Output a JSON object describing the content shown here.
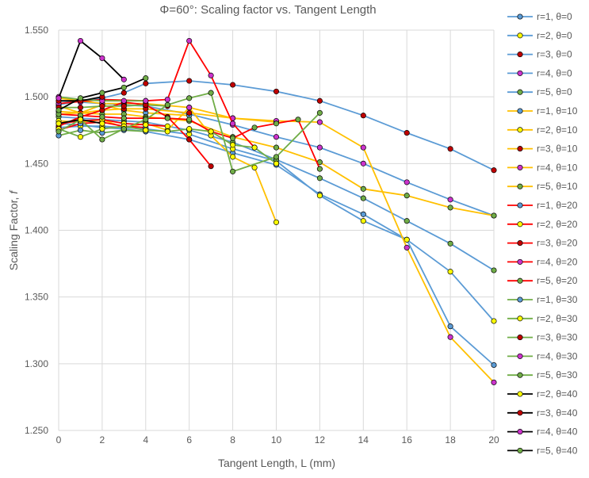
{
  "chart_data": {
    "type": "line",
    "title": "Φ=60°: Scaling factor vs. Tangent Length",
    "xlabel": "Tangent Length, L (mm)",
    "ylabel_main": "Scaling Factor, ",
    "ylabel_symbol": "f",
    "xlim": [
      0,
      20
    ],
    "ylim": [
      1.25,
      1.55
    ],
    "x_ticks": [
      0,
      2,
      4,
      6,
      8,
      10,
      12,
      14,
      16,
      18,
      20
    ],
    "y_ticks": [
      1.25,
      1.3,
      1.35,
      1.4,
      1.45,
      1.5,
      1.55
    ],
    "x_tick_labels": [
      "0",
      "2",
      "4",
      "6",
      "8",
      "10",
      "12",
      "14",
      "16",
      "18",
      "20"
    ],
    "y_tick_labels": [
      "1.250",
      "1.300",
      "1.350",
      "1.400",
      "1.450",
      "1.500",
      "1.550"
    ],
    "gridlines": "both",
    "legend_position": "right",
    "series": [
      {
        "name": "r=1, θ=0",
        "line": "#5b9bd5",
        "marker": "#5b9bd5",
        "x": [
          0,
          1,
          2,
          3,
          4,
          6,
          8,
          10,
          12,
          14,
          16,
          18,
          20
        ],
        "y": [
          1.48,
          1.479,
          1.477,
          1.476,
          1.474,
          1.468,
          1.458,
          1.449,
          1.427,
          1.412,
          1.393,
          1.328,
          1.299
        ]
      },
      {
        "name": "r=2, θ=0",
        "line": "#5b9bd5",
        "marker": "#ffff00",
        "x": [
          0,
          1,
          2,
          3,
          4,
          6,
          8,
          10,
          12,
          14,
          16,
          18,
          20
        ],
        "y": [
          1.477,
          1.478,
          1.478,
          1.477,
          1.476,
          1.472,
          1.461,
          1.452,
          1.426,
          1.407,
          1.393,
          1.369,
          1.332
        ]
      },
      {
        "name": "r=3, θ=0",
        "line": "#5b9bd5",
        "marker": "#c00000",
        "x": [
          0,
          1,
          2,
          3,
          4,
          6,
          8,
          10,
          12,
          14,
          16,
          18,
          20
        ],
        "y": [
          1.494,
          1.497,
          1.499,
          1.503,
          1.51,
          1.512,
          1.509,
          1.504,
          1.497,
          1.486,
          1.473,
          1.461,
          1.445
        ]
      },
      {
        "name": "r=4, θ=0",
        "line": "#5b9bd5",
        "marker": "#cc33cc",
        "x": [
          0,
          1,
          2,
          3,
          4,
          6,
          8,
          10,
          12,
          14,
          16,
          18,
          20
        ],
        "y": [
          1.497,
          1.496,
          1.495,
          1.494,
          1.493,
          1.487,
          1.479,
          1.47,
          1.462,
          1.45,
          1.436,
          1.423,
          1.411
        ]
      },
      {
        "name": "r=5, θ=0",
        "line": "#5b9bd5",
        "marker": "#70ad47",
        "x": [
          0,
          1,
          2,
          3,
          4,
          6,
          8,
          10,
          12,
          14,
          16,
          18,
          20
        ],
        "y": [
          1.485,
          1.484,
          1.483,
          1.482,
          1.481,
          1.475,
          1.466,
          1.453,
          1.439,
          1.424,
          1.407,
          1.39,
          1.37
        ]
      },
      {
        "name": "r=1, θ=10",
        "line": "#ffc000",
        "marker": "#5b9bd5",
        "x": [
          0,
          1,
          2,
          3,
          4,
          6
        ],
        "y": [
          1.493,
          1.488,
          1.494,
          1.49,
          1.488,
          1.486
        ]
      },
      {
        "name": "r=2, θ=10",
        "line": "#ffc000",
        "marker": "#ffff00",
        "x": [
          0,
          1,
          2,
          3,
          4,
          5,
          6,
          7,
          8,
          9,
          10
        ],
        "y": [
          1.482,
          1.481,
          1.483,
          1.477,
          1.48,
          1.475,
          1.492,
          1.471,
          1.455,
          1.447,
          1.406
        ]
      },
      {
        "name": "r=3, θ=10",
        "line": "#ffc000",
        "marker": "#c00000",
        "x": [
          0,
          1,
          2,
          3,
          4,
          6,
          8,
          10
        ],
        "y": [
          1.487,
          1.488,
          1.49,
          1.491,
          1.491,
          1.488,
          1.484,
          1.481
        ]
      },
      {
        "name": "r=4, θ=10",
        "line": "#ffc000",
        "marker": "#cc33cc",
        "x": [
          0,
          2,
          3,
          4,
          6,
          8,
          10,
          12,
          14,
          16,
          18,
          20
        ],
        "y": [
          1.499,
          1.495,
          1.495,
          1.495,
          1.492,
          1.484,
          1.482,
          1.481,
          1.462,
          1.387,
          1.32,
          1.286
        ]
      },
      {
        "name": "r=5, θ=10",
        "line": "#ffc000",
        "marker": "#70ad47",
        "x": [
          0,
          2,
          3,
          4,
          6,
          8,
          10,
          12,
          14,
          16,
          18,
          20
        ],
        "y": [
          1.489,
          1.487,
          1.487,
          1.485,
          1.482,
          1.47,
          1.462,
          1.451,
          1.431,
          1.426,
          1.417,
          1.411
        ]
      },
      {
        "name": "r=1, θ=20",
        "line": "#ff0000",
        "marker": "#5b9bd5",
        "x": [
          0,
          1,
          2,
          3,
          4
        ],
        "y": [
          1.475,
          1.48,
          1.481,
          1.478,
          1.477
        ]
      },
      {
        "name": "r=2, θ=20",
        "line": "#ff0000",
        "marker": "#ffff00",
        "x": [
          0,
          1,
          2,
          3,
          4,
          5
        ],
        "y": [
          1.48,
          1.482,
          1.483,
          1.48,
          1.479,
          1.478
        ]
      },
      {
        "name": "r=3, θ=20",
        "line": "#ff0000",
        "marker": "#c00000",
        "x": [
          0,
          1,
          2,
          3,
          4,
          5,
          6,
          7
        ],
        "y": [
          1.478,
          1.485,
          1.49,
          1.496,
          1.494,
          1.485,
          1.468,
          1.448
        ]
      },
      {
        "name": "r=4, θ=20",
        "line": "#ff0000",
        "marker": "#cc33cc",
        "x": [
          0,
          2,
          4,
          5,
          6,
          7,
          8,
          9
        ],
        "y": [
          1.495,
          1.498,
          1.497,
          1.498,
          1.542,
          1.516,
          1.48,
          1.462
        ]
      },
      {
        "name": "r=5, θ=20",
        "line": "#ff0000",
        "marker": "#70ad47",
        "x": [
          0,
          1,
          2,
          3,
          4,
          5,
          6,
          7,
          8,
          9,
          10,
          11,
          12
        ],
        "y": [
          1.487,
          1.486,
          1.485,
          1.484,
          1.484,
          1.484,
          1.483,
          1.474,
          1.469,
          1.477,
          1.48,
          1.483,
          1.446
        ]
      },
      {
        "name": "r=1, θ=30",
        "line": "#70ad47",
        "marker": "#5b9bd5",
        "x": [
          0,
          1,
          2,
          3,
          4
        ],
        "y": [
          1.471,
          1.475,
          1.473,
          1.475,
          1.474
        ]
      },
      {
        "name": "r=2, θ=30",
        "line": "#70ad47",
        "marker": "#ffff00",
        "x": [
          0,
          1,
          2,
          3,
          4,
          5,
          6,
          7,
          8,
          9,
          10
        ],
        "y": [
          1.476,
          1.47,
          1.476,
          1.478,
          1.475,
          1.474,
          1.476,
          1.474,
          1.464,
          1.462,
          1.45
        ]
      },
      {
        "name": "r=3, θ=30",
        "line": "#70ad47",
        "marker": "#c00000",
        "x": [
          0,
          1,
          2,
          3,
          4,
          5
        ],
        "y": [
          1.492,
          1.492,
          1.493,
          1.493,
          1.494,
          1.493
        ]
      },
      {
        "name": "r=4, θ=30",
        "line": "#70ad47",
        "marker": "#cc33cc",
        "x": [
          0,
          1,
          2,
          3,
          4
        ],
        "y": [
          1.5,
          1.498,
          1.497,
          1.497,
          1.497
        ]
      },
      {
        "name": "r=5, θ=30",
        "line": "#70ad47",
        "marker": "#70ad47",
        "x": [
          0,
          1,
          2,
          3,
          4,
          5,
          6,
          7,
          8,
          10,
          12
        ],
        "y": [
          1.474,
          1.483,
          1.468,
          1.476,
          1.483,
          1.494,
          1.499,
          1.503,
          1.444,
          1.455,
          1.488
        ]
      },
      {
        "name": "r=2, θ=40",
        "line": "#000000",
        "marker": "#ffff00",
        "x": [
          0,
          1,
          2
        ],
        "y": [
          1.48,
          1.483,
          1.48
        ]
      },
      {
        "name": "r=3, θ=40",
        "line": "#000000",
        "marker": "#c00000",
        "x": [
          0,
          1,
          2
        ],
        "y": [
          1.497,
          1.497,
          1.5
        ]
      },
      {
        "name": "r=4, θ=40",
        "line": "#000000",
        "marker": "#cc33cc",
        "x": [
          0,
          1,
          2,
          3
        ],
        "y": [
          1.499,
          1.542,
          1.529,
          1.513
        ]
      },
      {
        "name": "r=5, θ=40",
        "line": "#000000",
        "marker": "#70ad47",
        "x": [
          0,
          1,
          2,
          3,
          4
        ],
        "y": [
          1.49,
          1.499,
          1.503,
          1.507,
          1.514
        ]
      }
    ]
  }
}
